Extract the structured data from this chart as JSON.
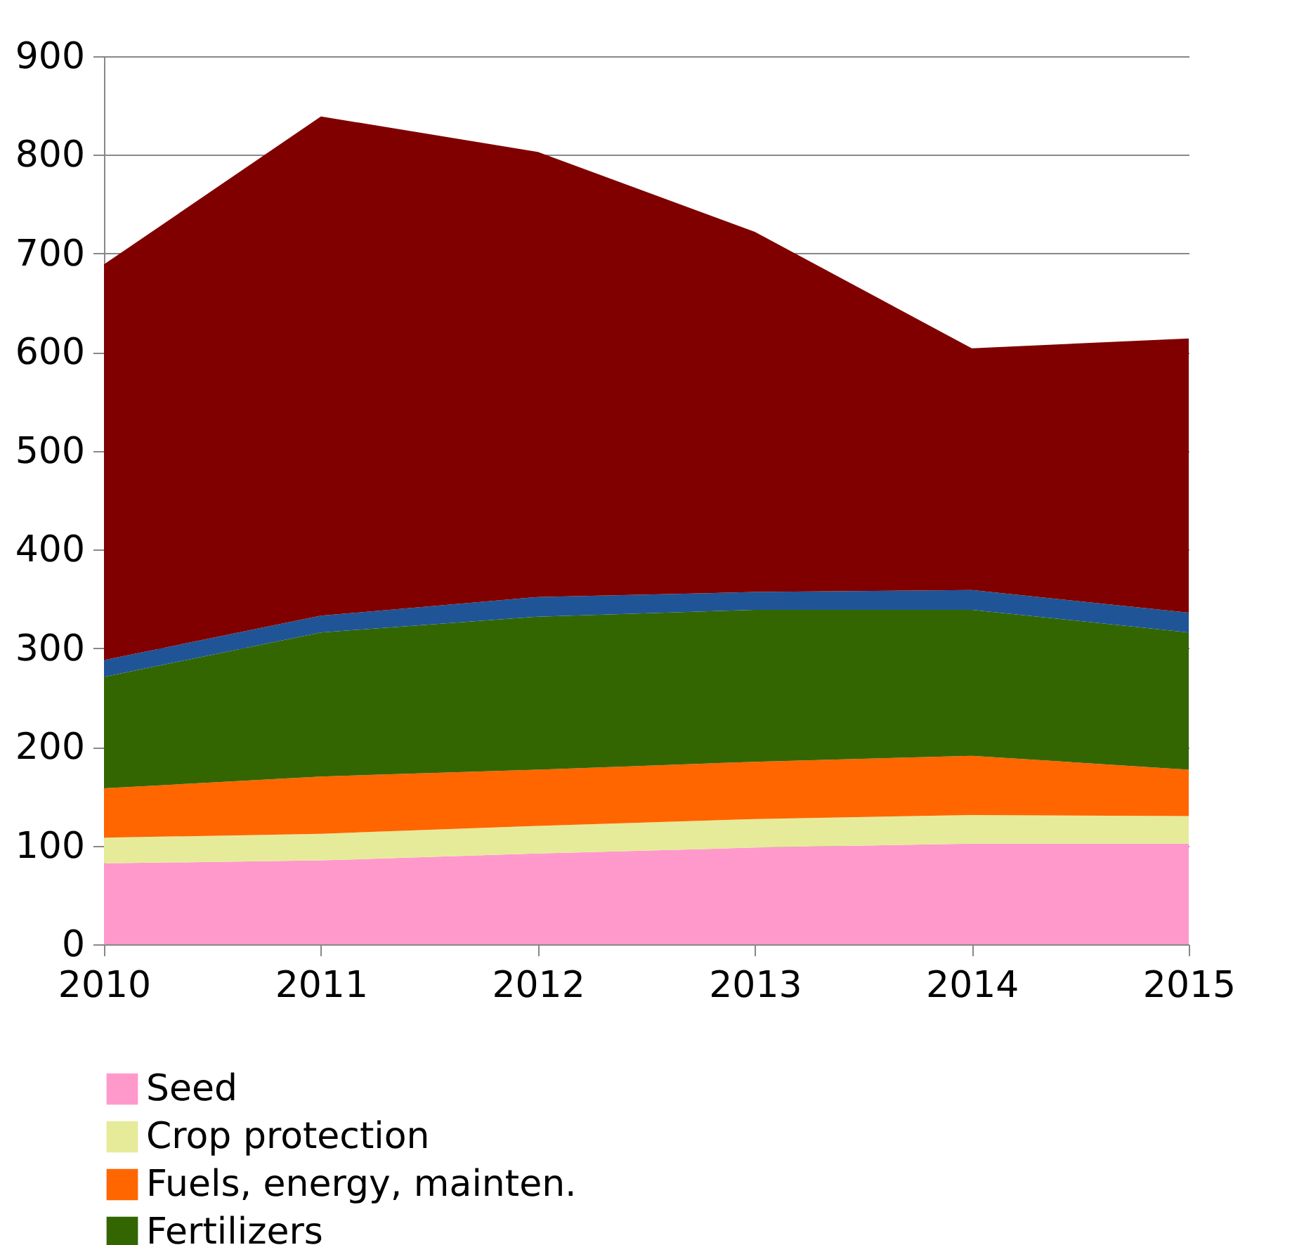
{
  "chart_data": {
    "type": "area",
    "stacked": true,
    "x": [
      2010,
      2011,
      2012,
      2013,
      2014,
      2015
    ],
    "xlim": [
      2010,
      2015
    ],
    "xticks": [
      2010,
      2011,
      2012,
      2013,
      2014,
      2015
    ],
    "ylim": [
      0,
      900
    ],
    "yticks": [
      0,
      100,
      200,
      300,
      400,
      500,
      600,
      700,
      800,
      900
    ],
    "grid": "y",
    "legend": "bottom",
    "series": [
      {
        "name": "Seed",
        "color": "#ff99cc",
        "values": [
          82,
          85,
          92,
          98,
          102,
          102
        ]
      },
      {
        "name": "Crop protection",
        "color": "#e6eb99",
        "values": [
          26,
          27,
          28,
          29,
          29,
          28
        ]
      },
      {
        "name": "Fuels, energy, mainten.",
        "color": "#ff6600",
        "values": [
          50,
          58,
          57,
          58,
          60,
          47
        ]
      },
      {
        "name": "Fertilizers",
        "color": "#336600",
        "values": [
          113,
          146,
          155,
          154,
          148,
          139
        ]
      },
      {
        "color": "#1f5596",
        "values": [
          17,
          17,
          20,
          18,
          20,
          20
        ]
      },
      {
        "color": "#800000",
        "values": [
          401,
          506,
          451,
          365,
          245,
          278
        ]
      }
    ]
  }
}
